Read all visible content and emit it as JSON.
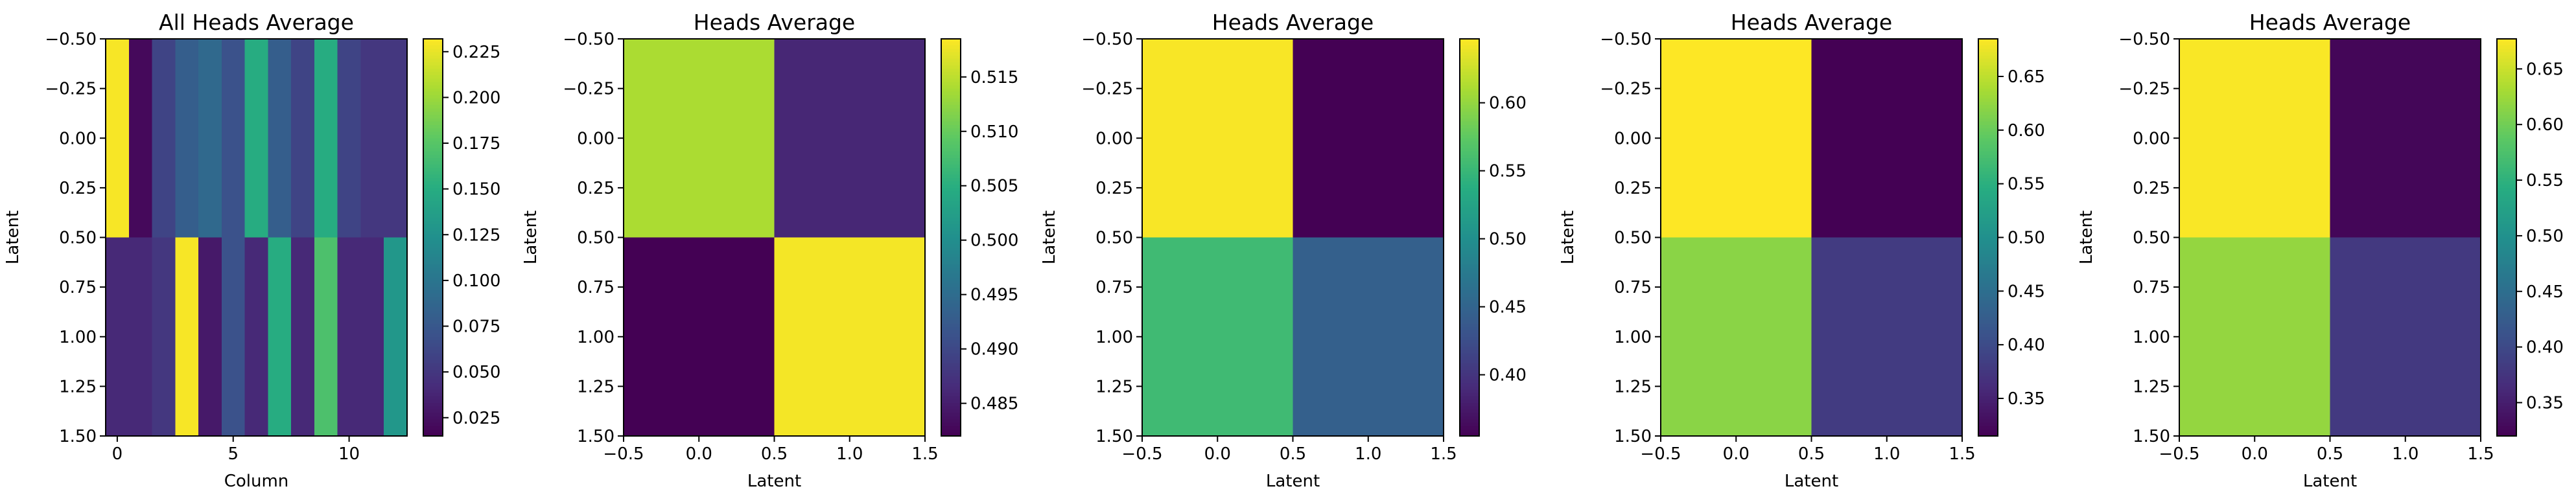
{
  "chart_data": [
    {
      "type": "heatmap",
      "title": "All Heads Average",
      "xlabel": "Column",
      "ylabel": "Latent",
      "xlim": [
        -0.5,
        12.5
      ],
      "ylim": [
        1.5,
        -0.5
      ],
      "x_ticks": [
        0,
        5,
        10
      ],
      "x_tick_labels": [
        "0",
        "5",
        "10"
      ],
      "y_ticks": [
        -0.5,
        -0.25,
        0,
        0.25,
        0.5,
        0.75,
        1,
        1.25,
        1.5
      ],
      "y_tick_labels": [
        "−0.50",
        "−0.25",
        "0.00",
        "0.25",
        "0.50",
        "0.75",
        "1.00",
        "1.25",
        "1.50"
      ],
      "values": [
        [
          0.23,
          0.02,
          0.06,
          0.08,
          0.09,
          0.07,
          0.15,
          0.08,
          0.06,
          0.15,
          0.06,
          0.05,
          0.05
        ],
        [
          0.04,
          0.04,
          0.05,
          0.23,
          0.03,
          0.07,
          0.04,
          0.15,
          0.04,
          0.17,
          0.04,
          0.04,
          0.13
        ]
      ],
      "colorbar": {
        "vmin": 0.015,
        "vmax": 0.232,
        "ticks": [
          0.025,
          0.05,
          0.075,
          0.1,
          0.125,
          0.15,
          0.175,
          0.2,
          0.225
        ],
        "tick_labels": [
          "0.025",
          "0.050",
          "0.075",
          "0.100",
          "0.125",
          "0.150",
          "0.175",
          "0.200",
          "0.225"
        ]
      },
      "colormap": "viridis",
      "grid": false
    },
    {
      "type": "heatmap",
      "title": "Heads Average",
      "xlabel": "Latent",
      "ylabel": "Latent",
      "xlim": [
        -0.5,
        1.5
      ],
      "ylim": [
        1.5,
        -0.5
      ],
      "x_ticks": [
        -0.5,
        0,
        0.5,
        1,
        1.5
      ],
      "x_tick_labels": [
        "−0.5",
        "0.0",
        "0.5",
        "1.0",
        "1.5"
      ],
      "y_ticks": [
        -0.5,
        -0.25,
        0,
        0.25,
        0.5,
        0.75,
        1,
        1.25,
        1.5
      ],
      "y_tick_labels": [
        "−0.50",
        "−0.25",
        "0.00",
        "0.25",
        "0.50",
        "0.75",
        "1.00",
        "1.25",
        "1.50"
      ],
      "values": [
        [
          0.514,
          0.486
        ],
        [
          0.482,
          0.518
        ]
      ],
      "colorbar": {
        "vmin": 0.482,
        "vmax": 0.5185,
        "ticks": [
          0.485,
          0.49,
          0.495,
          0.5,
          0.505,
          0.51,
          0.515
        ],
        "tick_labels": [
          "0.485",
          "0.490",
          "0.495",
          "0.500",
          "0.505",
          "0.510",
          "0.515"
        ]
      },
      "colormap": "viridis",
      "grid": false
    },
    {
      "type": "heatmap",
      "title": "Heads Average",
      "xlabel": "Latent",
      "ylabel": "Latent",
      "xlim": [
        -0.5,
        1.5
      ],
      "ylim": [
        1.5,
        -0.5
      ],
      "x_ticks": [
        -0.5,
        0,
        0.5,
        1,
        1.5
      ],
      "x_tick_labels": [
        "−0.5",
        "0.0",
        "0.5",
        "1.0",
        "1.5"
      ],
      "y_ticks": [
        -0.5,
        -0.25,
        0,
        0.25,
        0.5,
        0.75,
        1,
        1.25,
        1.5
      ],
      "y_tick_labels": [
        "−0.50",
        "−0.25",
        "0.00",
        "0.25",
        "0.50",
        "0.75",
        "1.00",
        "1.25",
        "1.50"
      ],
      "values": [
        [
          0.645,
          0.355
        ],
        [
          0.555,
          0.445
        ]
      ],
      "colorbar": {
        "vmin": 0.355,
        "vmax": 0.647,
        "ticks": [
          0.4,
          0.45,
          0.5,
          0.55,
          0.6
        ],
        "tick_labels": [
          "0.40",
          "0.45",
          "0.50",
          "0.55",
          "0.60"
        ]
      },
      "colormap": "viridis",
      "grid": false
    },
    {
      "type": "heatmap",
      "title": "Heads Average",
      "xlabel": "Latent",
      "ylabel": "Latent",
      "xlim": [
        -0.5,
        1.5
      ],
      "ylim": [
        1.5,
        -0.5
      ],
      "x_ticks": [
        -0.5,
        0,
        0.5,
        1,
        1.5
      ],
      "x_tick_labels": [
        "−0.5",
        "0.0",
        "0.5",
        "1.0",
        "1.5"
      ],
      "y_ticks": [
        -0.5,
        -0.25,
        0,
        0.25,
        0.5,
        0.75,
        1,
        1.25,
        1.5
      ],
      "y_tick_labels": [
        "−0.50",
        "−0.25",
        "0.00",
        "0.25",
        "0.50",
        "0.75",
        "1.00",
        "1.25",
        "1.50"
      ],
      "values": [
        [
          0.685,
          0.315
        ],
        [
          0.62,
          0.38
        ]
      ],
      "colorbar": {
        "vmin": 0.315,
        "vmax": 0.685,
        "ticks": [
          0.35,
          0.4,
          0.45,
          0.5,
          0.55,
          0.6,
          0.65
        ],
        "tick_labels": [
          "0.35",
          "0.40",
          "0.45",
          "0.50",
          "0.55",
          "0.60",
          "0.65"
        ]
      },
      "colormap": "viridis",
      "grid": false
    },
    {
      "type": "heatmap",
      "title": "Heads Average",
      "xlabel": "Latent",
      "ylabel": "Latent",
      "xlim": [
        -0.5,
        1.5
      ],
      "ylim": [
        1.5,
        -0.5
      ],
      "x_ticks": [
        -0.5,
        0,
        0.5,
        1,
        1.5
      ],
      "x_tick_labels": [
        "−0.5",
        "0.0",
        "0.5",
        "1.0",
        "1.5"
      ],
      "y_ticks": [
        -0.5,
        -0.25,
        0,
        0.25,
        0.5,
        0.75,
        1,
        1.25,
        1.5
      ],
      "y_tick_labels": [
        "−0.50",
        "−0.25",
        "0.00",
        "0.25",
        "0.50",
        "0.75",
        "1.00",
        "1.25",
        "1.50"
      ],
      "values": [
        [
          0.675,
          0.325
        ],
        [
          0.62,
          0.38
        ]
      ],
      "colorbar": {
        "vmin": 0.32,
        "vmax": 0.677,
        "ticks": [
          0.35,
          0.4,
          0.45,
          0.5,
          0.55,
          0.6,
          0.65
        ],
        "tick_labels": [
          "0.35",
          "0.40",
          "0.45",
          "0.50",
          "0.55",
          "0.60",
          "0.65"
        ]
      },
      "colormap": "viridis",
      "grid": false
    }
  ]
}
